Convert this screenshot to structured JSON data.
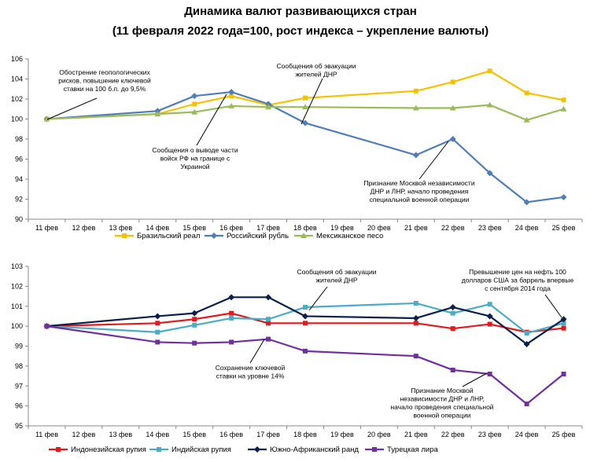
{
  "title_line1": "Динамика валют развивающихся стран",
  "title_line2": "(11 февраля 2022 года=100, рост индекса – укрепление валюты)",
  "chart_data": [
    {
      "type": "line",
      "categories": [
        "11 фев",
        "12 фев",
        "13 фев",
        "14 фев",
        "15 фев",
        "16 фев",
        "17 фев",
        "18 фев",
        "19 фев",
        "20 фев",
        "21 фев",
        "22 фев",
        "23 фев",
        "24 фев",
        "25 фев"
      ],
      "ylim": [
        90,
        106
      ],
      "yticks": [
        90,
        92,
        94,
        96,
        98,
        100,
        102,
        104,
        106
      ],
      "series": [
        {
          "name": "Бразильский реал",
          "color": "#F5C200",
          "marker": "square",
          "values": [
            100,
            null,
            null,
            100.5,
            101.5,
            102.3,
            101.4,
            102.1,
            null,
            null,
            102.8,
            103.7,
            104.8,
            102.6,
            101.9
          ]
        },
        {
          "name": "Российский рубль",
          "color": "#4F7DB8",
          "marker": "diamond",
          "values": [
            100,
            null,
            null,
            100.8,
            102.3,
            102.7,
            101.5,
            99.6,
            null,
            null,
            96.4,
            98.0,
            94.6,
            91.7,
            92.2
          ]
        },
        {
          "name": "Мексиканское песо",
          "color": "#9BBB59",
          "marker": "triangle",
          "values": [
            100,
            null,
            null,
            100.5,
            100.7,
            101.3,
            101.2,
            101.2,
            null,
            null,
            101.1,
            101.1,
            101.4,
            99.9,
            101.0
          ]
        }
      ],
      "annotations": [
        {
          "lines": [
            "Обострение геопологических",
            "рисков, повышение ключевой",
            "ставки на 100 б.п. до 9,5%"
          ]
        },
        {
          "lines": [
            "Сообщения об эвакуации",
            "жителей ДНР"
          ]
        },
        {
          "lines": [
            "Сообщения о выводе части",
            "войск РФ на границе с",
            "Украиной"
          ]
        },
        {
          "lines": [
            "Признание Москвой независимости",
            "ДНР и ЛНР, начало проведения",
            "специальной военной операции"
          ]
        }
      ]
    },
    {
      "type": "line",
      "categories": [
        "11 фев",
        "12 фев",
        "13 фев",
        "14 фев",
        "15 фев",
        "16 фев",
        "17 фев",
        "18 фев",
        "19 фев",
        "20 фев",
        "21 фев",
        "22 фев",
        "23 фев",
        "24 фев",
        "25 фев"
      ],
      "ylim": [
        95,
        103
      ],
      "yticks": [
        95,
        96,
        97,
        98,
        99,
        100,
        101,
        102,
        103
      ],
      "series": [
        {
          "name": "Индонезийская рупия",
          "color": "#E31A1C",
          "marker": "square",
          "values": [
            100,
            null,
            null,
            100.15,
            100.35,
            100.65,
            100.15,
            100.15,
            null,
            null,
            100.15,
            99.88,
            100.1,
            99.7,
            99.9
          ]
        },
        {
          "name": "Индийская рупия",
          "color": "#4BACC6",
          "marker": "square",
          "values": [
            100,
            null,
            null,
            99.7,
            100.05,
            100.4,
            100.35,
            100.95,
            null,
            null,
            101.15,
            100.65,
            101.1,
            99.65,
            100.15
          ]
        },
        {
          "name": "Южно-Африканский ранд",
          "color": "#0B1F4D",
          "marker": "diamond",
          "values": [
            100,
            null,
            null,
            100.5,
            100.65,
            101.45,
            101.45,
            100.5,
            null,
            null,
            100.4,
            100.95,
            100.5,
            99.1,
            100.35
          ]
        },
        {
          "name": "Турецкая лира",
          "color": "#7030A0",
          "marker": "square",
          "values": [
            100,
            null,
            null,
            99.2,
            99.15,
            99.2,
            99.35,
            98.75,
            null,
            null,
            98.5,
            97.8,
            97.6,
            96.1,
            97.6
          ]
        }
      ],
      "annotations": [
        {
          "lines": [
            "Сообщения об эвакуации",
            "жителей ДНР"
          ]
        },
        {
          "lines": [
            "Превышение цен на нефть 100",
            "долларов США за баррель впервые",
            "с сентября 2014 года"
          ]
        },
        {
          "lines": [
            "Сохранение ключевой",
            "ставки на уровне 14%"
          ]
        },
        {
          "lines": [
            "Признание Москвой",
            "независимости ДНР и ЛНР,",
            "начало проведения специальной",
            "военной операции"
          ]
        }
      ]
    }
  ]
}
